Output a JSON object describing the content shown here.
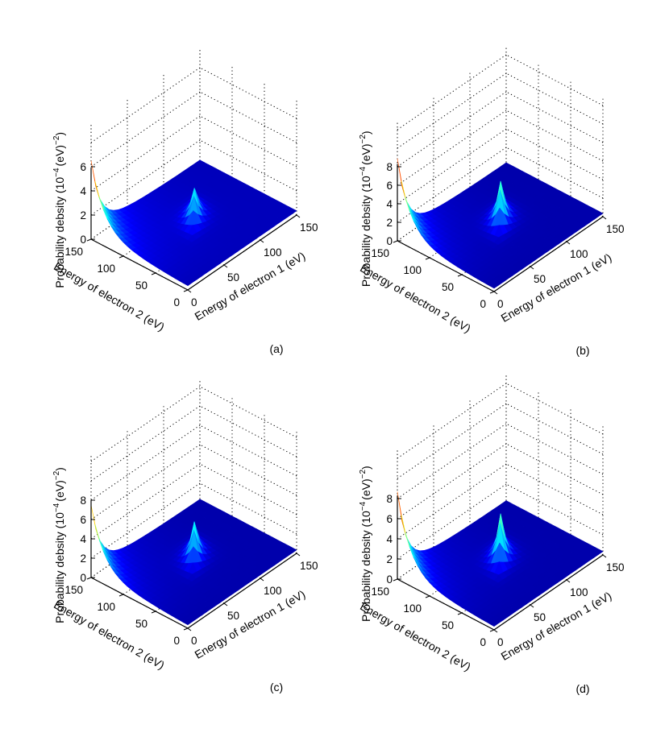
{
  "figure": {
    "description_labels": [
      "(a)",
      "(b)",
      "(c)",
      "(d)"
    ]
  },
  "chart_data": [
    {
      "type": "surface3d",
      "panel_label": "(a)",
      "zlabel_main": "Probability debsity (10",
      "zlabel_exp1": "−4",
      "zlabel_mid": "(eV)",
      "zlabel_exp2": "−2",
      "zlabel_close": ")",
      "xlabel": "Energy of electron 1 (eV)",
      "ylabel": "Energy of electron 2 (eV)",
      "x_ticks": [
        "0",
        "50",
        "100",
        "150"
      ],
      "y_ticks": [
        "0",
        "50",
        "100",
        "150"
      ],
      "z_ticks": [
        "0",
        "2",
        "4",
        "6"
      ],
      "zlim": [
        0,
        6
      ],
      "xlim": [
        0,
        150
      ],
      "ylim": [
        0,
        150
      ],
      "corner_peak_z": 5.6,
      "ridge_peak_z": 2.4,
      "ridge_energy_sum": 160,
      "colormap": "jet"
    },
    {
      "type": "surface3d",
      "panel_label": "(b)",
      "zlabel_main": "Probability debsity (10",
      "zlabel_exp1": "−4",
      "zlabel_mid": "(eV)",
      "zlabel_exp2": "−2",
      "zlabel_close": ")",
      "xlabel": "Energy of electron 1 (eV)",
      "ylabel": "Energy of electron 2 (eV)",
      "x_ticks": [
        "0",
        "50",
        "100",
        "150"
      ],
      "y_ticks": [
        "0",
        "50",
        "100",
        "150"
      ],
      "z_ticks": [
        "0",
        "2",
        "4",
        "6",
        "8"
      ],
      "zlim": [
        0,
        8
      ],
      "xlim": [
        0,
        150
      ],
      "ylim": [
        0,
        150
      ],
      "corner_peak_z": 8.0,
      "ridge_peak_z": 4.2,
      "ridge_energy_sum": 160,
      "colormap": "jet"
    },
    {
      "type": "surface3d",
      "panel_label": "(c)",
      "zlabel_main": "Probability debsity (10",
      "zlabel_exp1": "−4",
      "zlabel_mid": "(eV)",
      "zlabel_exp2": "−2",
      "zlabel_close": ")",
      "xlabel": "Energy of electron 1 (eV)",
      "ylabel": "Energy of electron 2 (eV)",
      "x_ticks": [
        "0",
        "50",
        "100",
        "150"
      ],
      "y_ticks": [
        "0",
        "50",
        "100",
        "150"
      ],
      "z_ticks": [
        "0",
        "2",
        "4",
        "6",
        "8"
      ],
      "zlim": [
        0,
        8
      ],
      "xlim": [
        0,
        150
      ],
      "ylim": [
        0,
        150
      ],
      "corner_peak_z": 6.6,
      "ridge_peak_z": 3.6,
      "ridge_energy_sum": 160,
      "colormap": "jet"
    },
    {
      "type": "surface3d",
      "panel_label": "(d)",
      "zlabel_main": "Probability debsity (10",
      "zlabel_exp1": "−4",
      "zlabel_mid": "(eV)",
      "zlabel_exp2": "−2",
      "zlabel_close": ")",
      "xlabel": "Energy of electron 1 (eV)",
      "ylabel": "Energy of electron 2 (eV)",
      "x_ticks": [
        "0",
        "50",
        "100",
        "150"
      ],
      "y_ticks": [
        "0",
        "50",
        "100",
        "150"
      ],
      "z_ticks": [
        "0",
        "2",
        "4",
        "6",
        "8"
      ],
      "zlim": [
        0,
        8
      ],
      "xlim": [
        0,
        150
      ],
      "ylim": [
        0,
        150
      ],
      "corner_peak_z": 7.8,
      "ridge_peak_z": 4.4,
      "ridge_energy_sum": 160,
      "colormap": "jet"
    }
  ]
}
